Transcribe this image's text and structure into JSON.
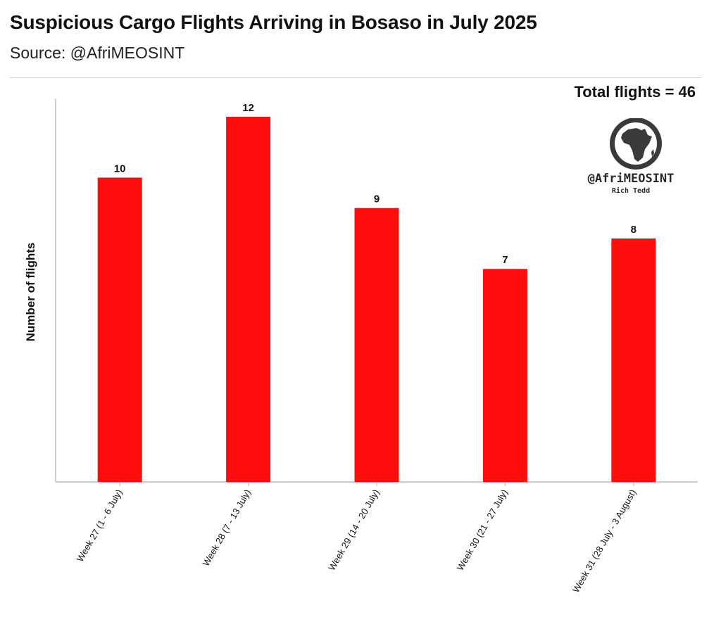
{
  "title": "Suspicious Cargo Flights Arriving in Bosaso in July 2025",
  "subtitle": "Source: @AfriMEOSINT",
  "total_label": "Total flights = 46",
  "logo": {
    "icon": "africa-globe-icon",
    "handle": "@AfriMEOSINT",
    "name": "Rich Tedd"
  },
  "colors": {
    "bar": "#ff0d0d",
    "axis": "#cccccc",
    "text": "#111111"
  },
  "chart_data": {
    "type": "bar",
    "title": "Suspicious Cargo Flights Arriving in Bosaso in July 2025",
    "xlabel": "",
    "ylabel": "Number of flights",
    "categories": [
      "Week 27 (1 - 6 July)",
      "Week 28 (7 - 13 July)",
      "Week 29 (14 - 20 July)",
      "Week 30 (21 - 27 July)",
      "Week 31 (28 July - 3 August)"
    ],
    "values": [
      10,
      12,
      9,
      7,
      8
    ],
    "data_labels": [
      "10",
      "12",
      "9",
      "7",
      "8"
    ],
    "ylim": [
      0,
      12.6
    ],
    "grid": false,
    "legend": "none"
  }
}
